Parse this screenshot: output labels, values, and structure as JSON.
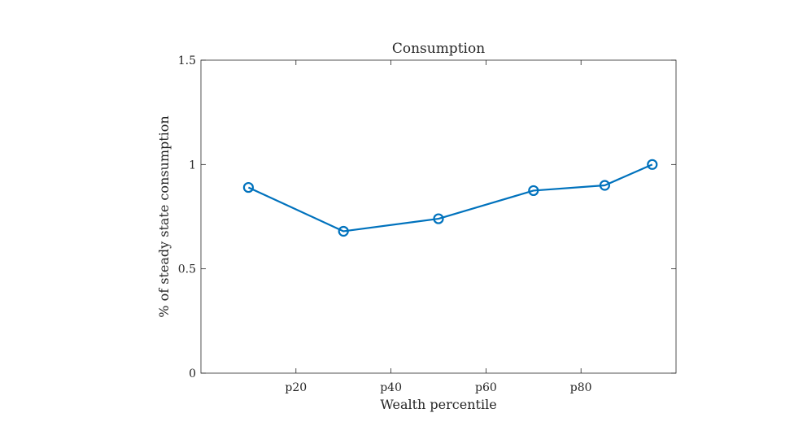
{
  "chart_data": {
    "type": "line",
    "title": "Consumption",
    "xlabel": "Wealth percentile",
    "ylabel": "% of steady state consumption",
    "xlim": [
      0,
      100
    ],
    "ylim": [
      0,
      1.5
    ],
    "x_ticks": [
      20,
      40,
      60,
      80
    ],
    "x_tick_labels": [
      "p20",
      "p40",
      "p60",
      "p80"
    ],
    "y_ticks": [
      0,
      0.5,
      1,
      1.5
    ],
    "y_tick_labels": [
      "0",
      "0.5",
      "1",
      "1.5"
    ],
    "grid": false,
    "series": [
      {
        "color": "#0072BD",
        "marker": "circle",
        "x": [
          10,
          30,
          50,
          70,
          85,
          95
        ],
        "y": [
          0.89,
          0.68,
          0.74,
          0.875,
          0.9,
          1.0
        ]
      }
    ]
  }
}
